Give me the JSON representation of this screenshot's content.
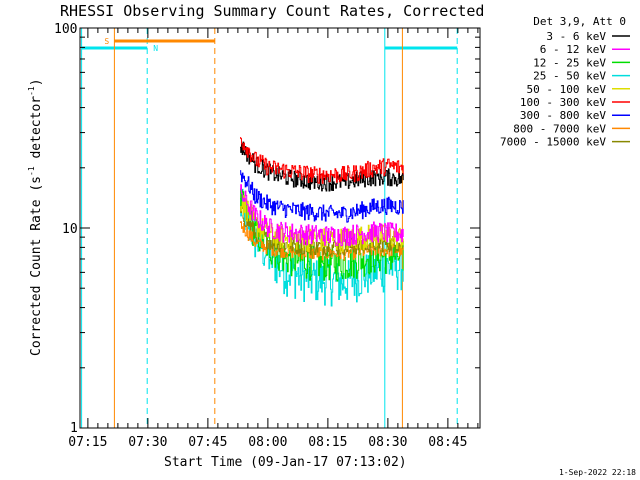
{
  "chart_data": {
    "type": "line",
    "title": "RHESSI Observing Summary Count Rates, Corrected",
    "xlabel": "Start Time (09-Jan-17 07:13:02)",
    "ylabel_main": "Corrected Count Rate (s",
    "ylabel_sup": "-1",
    "ylabel_rest": " detector",
    "ylabel_sup2": "-1",
    "ylabel_close": ")",
    "y_scale": "log",
    "ylim": [
      1,
      100
    ],
    "y_ticks": [
      "1",
      "10",
      "100"
    ],
    "x_range_minutes": [
      0,
      100
    ],
    "x_ticks": [
      {
        "label": "07:15",
        "min": 1.97
      },
      {
        "label": "07:30",
        "min": 16.97
      },
      {
        "label": "07:45",
        "min": 31.97
      },
      {
        "label": "08:00",
        "min": 46.97
      },
      {
        "label": "08:15",
        "min": 61.97
      },
      {
        "label": "08:30",
        "min": 76.97
      },
      {
        "label": "08:45",
        "min": 91.97
      }
    ],
    "legend_header": "Det 3,9, Att 0",
    "legend_placement": "right",
    "data_window_minutes": [
      40.0,
      80.8
    ],
    "series": [
      {
        "name": "3 - 6 keV",
        "color": "#000000",
        "values": [
          26,
          21,
          19,
          18,
          17.5,
          17,
          17,
          17,
          17.5,
          18,
          18,
          17.5
        ]
      },
      {
        "name": "6 - 12 keV",
        "color": "#ff00ff",
        "values": [
          15,
          11.5,
          10,
          9.6,
          9.4,
          9.3,
          9.2,
          9.2,
          9.4,
          9.6,
          9.5,
          9.4
        ]
      },
      {
        "name": "12 - 25 keV",
        "color": "#00dd00",
        "values": [
          13.5,
          9.5,
          8,
          7.2,
          6.9,
          6.8,
          6.7,
          6.7,
          7,
          7.3,
          7.3,
          7.2
        ]
      },
      {
        "name": "25 - 50 keV",
        "color": "#00dddd",
        "values": [
          13,
          9,
          7.2,
          6.2,
          5.8,
          5.6,
          5.5,
          5.4,
          5.8,
          6.2,
          6.4,
          6.5
        ]
      },
      {
        "name": "50 - 100 keV",
        "color": "#dddd00",
        "values": [
          14,
          10.5,
          9.3,
          9,
          8.9,
          8.8,
          8.8,
          8.8,
          9,
          9.2,
          9.1,
          9
        ]
      },
      {
        "name": "100 - 300 keV",
        "color": "#ff0000",
        "values": [
          28,
          22,
          20,
          19.5,
          19,
          18.5,
          18.5,
          18.5,
          19,
          20,
          20.5,
          20
        ]
      },
      {
        "name": "300 - 800 keV",
        "color": "#0000ff",
        "values": [
          19,
          14.5,
          13,
          12.5,
          12.2,
          12,
          11.8,
          11.8,
          12.2,
          12.8,
          13,
          12.8
        ]
      },
      {
        "name": "800 - 7000 keV",
        "color": "#ff8800",
        "values": [
          10.5,
          8.5,
          7.9,
          7.7,
          7.6,
          7.5,
          7.5,
          7.5,
          7.6,
          7.8,
          7.8,
          7.7
        ]
      },
      {
        "name": "7000 - 15000 keV",
        "color": "#888800",
        "values": [
          12,
          9.5,
          8.6,
          8.3,
          8.2,
          8.1,
          8.1,
          8.1,
          8.2,
          8.4,
          8.4,
          8.3
        ]
      }
    ],
    "annotations": {
      "saa_label": "S",
      "saa_color": "#ff8800",
      "saa_intervals_min": [
        [
          8.6,
          33.7
        ]
      ],
      "saa_markers_min": [
        8.6,
        33.7,
        80.6
      ],
      "night_label": "N",
      "night_color": "#00e5ee",
      "night_intervals_min": [
        [
          0.4,
          16.8
        ],
        [
          76.2,
          94.3
        ]
      ],
      "night_start_min": [
        0.4,
        76.2
      ],
      "night_end_min": [
        16.8,
        94.3
      ]
    },
    "footer_date": "1-Sep-2022 22:18"
  }
}
